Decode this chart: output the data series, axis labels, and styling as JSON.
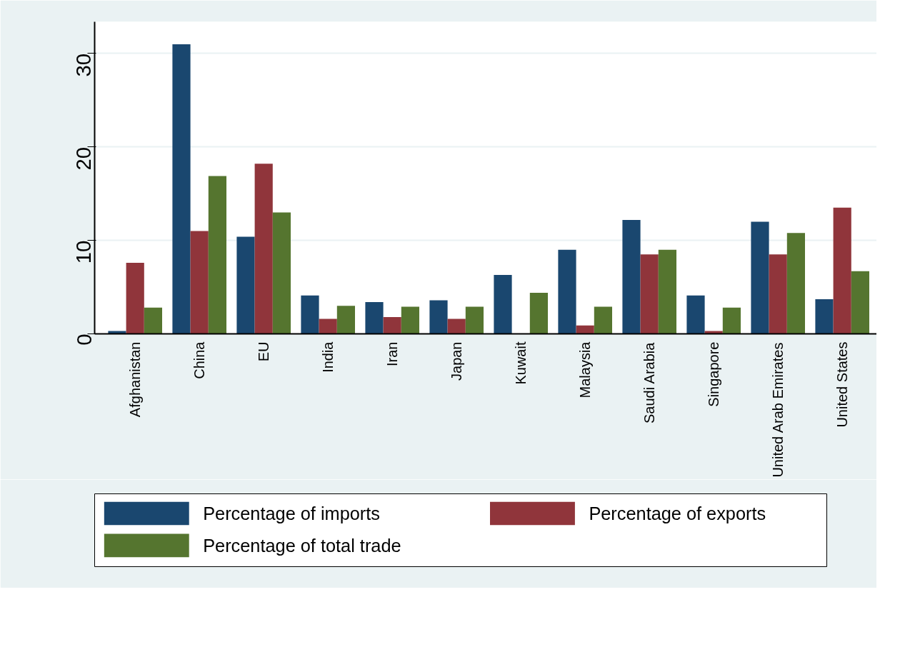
{
  "chart_data": {
    "type": "bar",
    "categories": [
      "Afghanistan",
      "China",
      "EU",
      "India",
      "Iran",
      "Japan",
      "Kuwait",
      "Malaysia",
      "Saudi Arabia",
      "Singapore",
      "United Arab Emirates",
      "United States"
    ],
    "series": [
      {
        "name": "Percentage of imports",
        "color": "#1a476f",
        "values": [
          0.3,
          31.0,
          10.4,
          4.1,
          3.4,
          3.6,
          6.3,
          9.0,
          12.2,
          4.1,
          12.0,
          3.7
        ]
      },
      {
        "name": "Percentage of exports",
        "color": "#90353b",
        "values": [
          7.6,
          11.0,
          18.2,
          1.6,
          1.8,
          1.6,
          0,
          0.9,
          8.5,
          0.3,
          8.5,
          13.5
        ]
      },
      {
        "name": "Percentage of total trade",
        "color": "#55752f",
        "values": [
          2.8,
          16.9,
          13.0,
          3.0,
          2.9,
          2.9,
          4.4,
          2.9,
          9.0,
          2.8,
          10.8,
          6.7
        ]
      }
    ],
    "ylim": [
      0,
      33.4
    ],
    "yticks": [
      0,
      10,
      20,
      30
    ],
    "grid": "y",
    "legend": "bottom"
  }
}
